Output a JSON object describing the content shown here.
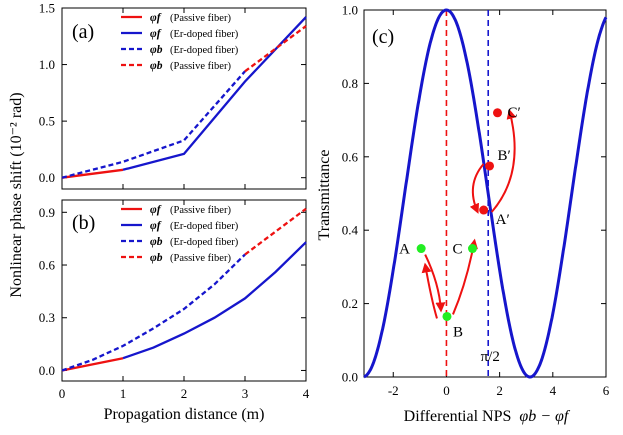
{
  "colors": {
    "red": "#ee1111",
    "blue": "#1616cc",
    "green": "#22ee22",
    "point_red": "#ee1111"
  },
  "chart_data": [
    {
      "type": "line",
      "panel_label": "(a)",
      "xlim": [
        0,
        4
      ],
      "ylim": [
        -0.1,
        1.5
      ],
      "x_ticks": [
        0,
        1,
        2,
        3,
        4
      ],
      "y_ticks": [
        "0.0",
        "0.5",
        "1.0",
        "1.5"
      ],
      "legend": [
        {
          "symbol": "φf",
          "text": "(Passive fiber)",
          "color": "red",
          "dash": false
        },
        {
          "symbol": "φf",
          "text": "(Er-doped fiber)",
          "color": "blue",
          "dash": false
        },
        {
          "symbol": "φb",
          "text": "(Er-doped fiber)",
          "color": "blue",
          "dash": true
        },
        {
          "symbol": "φb",
          "text": "(Passive fiber)",
          "color": "red",
          "dash": true
        }
      ],
      "series": [
        {
          "color": "red",
          "dash": false,
          "x": [
            0,
            1
          ],
          "y": [
            0,
            0.07
          ]
        },
        {
          "color": "blue",
          "dash": false,
          "x": [
            1,
            2,
            3,
            4
          ],
          "y": [
            0.07,
            0.21,
            0.85,
            1.42
          ]
        },
        {
          "color": "blue",
          "dash": true,
          "x": [
            0,
            1,
            2,
            3
          ],
          "y": [
            0,
            0.14,
            0.33,
            0.94
          ]
        },
        {
          "color": "red",
          "dash": true,
          "x": [
            3,
            4
          ],
          "y": [
            0.94,
            1.34
          ]
        }
      ]
    },
    {
      "type": "line",
      "panel_label": "(b)",
      "xlim": [
        0,
        4
      ],
      "ylim": [
        -0.06,
        0.97
      ],
      "x_ticks": [
        "0",
        "1",
        "2",
        "3",
        "4"
      ],
      "y_ticks": [
        "0.0",
        "0.3",
        "0.6",
        "0.9"
      ],
      "xlabel": "Propagation distance (m)",
      "shared_ylabel": "Nonlinear phase shift (10⁻² rad)",
      "legend": [
        {
          "symbol": "φf",
          "text": "(Passive fiber)",
          "color": "red",
          "dash": false
        },
        {
          "symbol": "φf",
          "text": "(Er-doped fiber)",
          "color": "blue",
          "dash": false
        },
        {
          "symbol": "φb",
          "text": "(Er-doped fiber)",
          "color": "blue",
          "dash": true
        },
        {
          "symbol": "φb",
          "text": "(Passive fiber)",
          "color": "red",
          "dash": true
        }
      ],
      "series": [
        {
          "color": "red",
          "dash": false,
          "x": [
            0,
            1
          ],
          "y": [
            0,
            0.07
          ]
        },
        {
          "color": "blue",
          "dash": false,
          "x": [
            1,
            1.5,
            2,
            2.5,
            3,
            3.5,
            4
          ],
          "y": [
            0.07,
            0.13,
            0.21,
            0.3,
            0.41,
            0.56,
            0.73
          ]
        },
        {
          "color": "blue",
          "dash": true,
          "x": [
            0,
            0.5,
            1,
            1.5,
            2,
            2.5,
            3
          ],
          "y": [
            0,
            0.06,
            0.14,
            0.24,
            0.35,
            0.49,
            0.66
          ]
        },
        {
          "color": "red",
          "dash": true,
          "x": [
            3,
            3.5,
            4
          ],
          "y": [
            0.66,
            0.79,
            0.92
          ]
        }
      ]
    },
    {
      "type": "line",
      "panel_label": "(c)",
      "xlim": [
        -3.1,
        6
      ],
      "ylim": [
        0,
        1
      ],
      "x_ticks": [
        "-2",
        "0",
        "2",
        "4",
        "6"
      ],
      "y_ticks": [
        "0.0",
        "0.2",
        "0.4",
        "0.6",
        "0.8",
        "1.0"
      ],
      "ylabel": "Transmittance",
      "xlabel_prefix": "Differential NPS",
      "xlabel_math": "φb − φf",
      "curve": {
        "function": "cos^2(x/2)",
        "color": "blue"
      },
      "vlines": [
        {
          "x": 0,
          "color": "red",
          "label": ""
        },
        {
          "x": 1.5708,
          "color": "blue",
          "label": "π/2"
        }
      ],
      "points": [
        {
          "label": "A",
          "x": -0.95,
          "y": 0.35,
          "color": "green"
        },
        {
          "label": "B",
          "x": 0.02,
          "y": 0.165,
          "color": "green"
        },
        {
          "label": "C",
          "x": 0.98,
          "y": 0.35,
          "color": "green"
        },
        {
          "label": "A′",
          "x": 1.4,
          "y": 0.455,
          "color": "red"
        },
        {
          "label": "B′",
          "x": 1.62,
          "y": 0.575,
          "color": "red"
        },
        {
          "label": "C′",
          "x": 1.92,
          "y": 0.72,
          "color": "red"
        }
      ]
    }
  ]
}
